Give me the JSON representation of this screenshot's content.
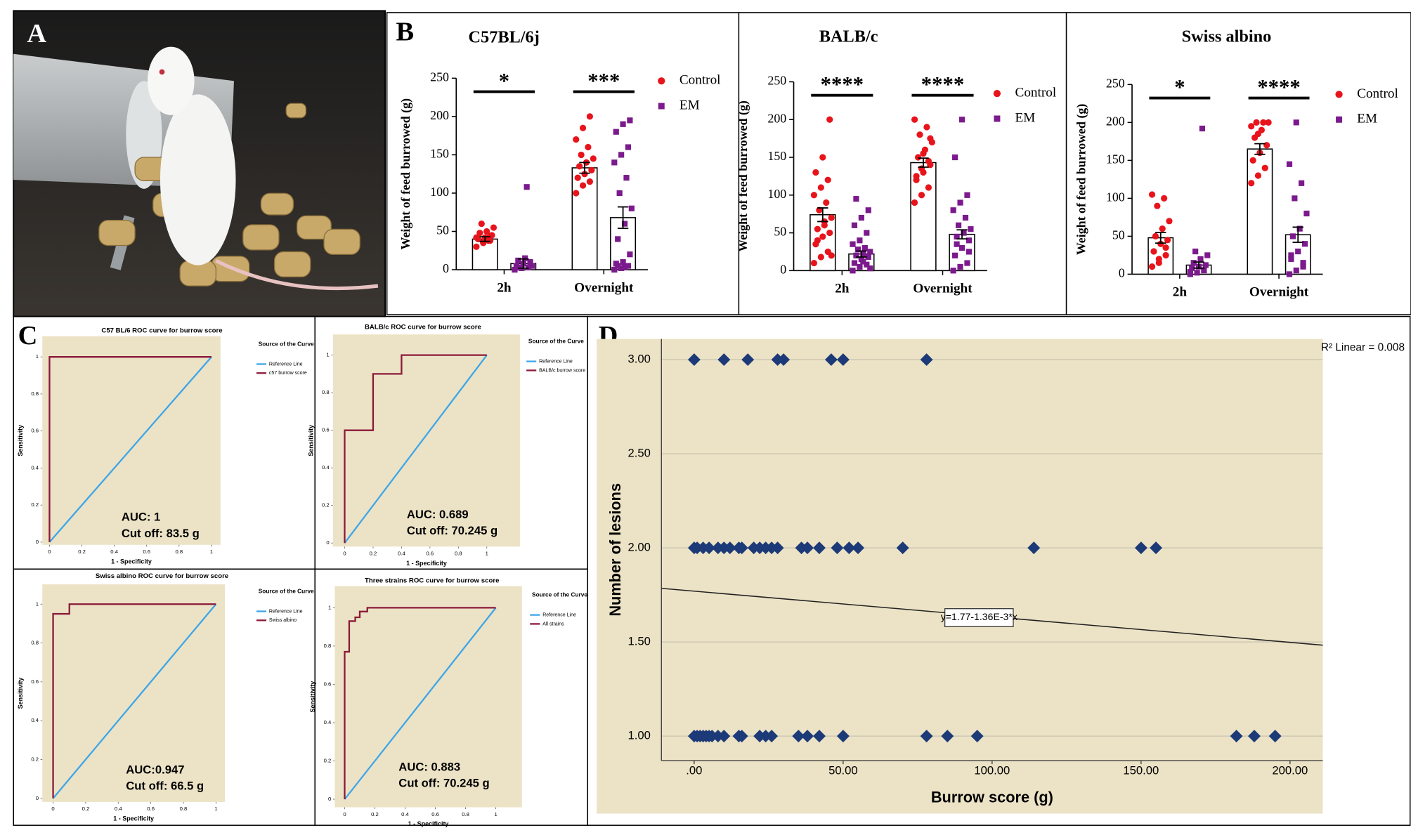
{
  "panel_labels": [
    "A",
    "B",
    "C",
    "D"
  ],
  "chart_data": [
    {
      "type": "bar",
      "title": "C57BL/6j",
      "y_label": "Weight of feed burrowed (g)",
      "categories": [
        "2h",
        "Overnight"
      ],
      "ylim": [
        0,
        250
      ],
      "yticks": [
        0,
        50,
        100,
        150,
        200,
        250
      ],
      "significance": [
        "*",
        "***"
      ],
      "legend": "right",
      "series": [
        {
          "name": "Control",
          "color": "#e8141c",
          "marker": "circle",
          "values": [
            40,
            133
          ],
          "errors": [
            3,
            7
          ],
          "points": [
            [
              30,
              35,
              38,
              40,
              42,
              45,
              48,
              50,
              55,
              60,
              38,
              42,
              36,
              44
            ],
            [
              100,
              110,
              115,
              120,
              125,
              130,
              135,
              140,
              145,
              150,
              160,
              170,
              185,
              200
            ]
          ]
        },
        {
          "name": "EM",
          "color": "#7b1a8c",
          "marker": "square",
          "values": [
            8,
            68
          ],
          "errors": [
            6,
            14
          ],
          "points": [
            [
              0,
              2,
              3,
              5,
              8,
              10,
              12,
              15,
              5,
              3,
              108
            ],
            [
              0,
              2,
              5,
              8,
              10,
              20,
              40,
              60,
              80,
              100,
              120,
              140,
              150,
              160,
              180,
              190,
              195,
              5,
              3
            ]
          ]
        }
      ]
    },
    {
      "type": "bar",
      "title": "BALB/c",
      "y_label": "Weight of feed burrowed (g)",
      "categories": [
        "2h",
        "Overnight"
      ],
      "ylim": [
        0,
        250
      ],
      "yticks": [
        0,
        50,
        100,
        150,
        200,
        250
      ],
      "significance": [
        "****",
        "****"
      ],
      "legend": "right",
      "series": [
        {
          "name": "Control",
          "color": "#e8141c",
          "marker": "circle",
          "values": [
            74,
            143
          ],
          "errors": [
            9,
            6
          ],
          "points": [
            [
              10,
              18,
              25,
              35,
              45,
              50,
              55,
              60,
              70,
              80,
              90,
              100,
              110,
              120,
              130,
              150,
              200,
              40,
              65,
              20
            ],
            [
              90,
              100,
              110,
              120,
              130,
              140,
              150,
              160,
              170,
              180,
              190,
              200,
              135,
              145,
              125,
              155,
              175
            ]
          ]
        },
        {
          "name": "EM",
          "color": "#7b1a8c",
          "marker": "square",
          "values": [
            22,
            48
          ],
          "errors": [
            4,
            6
          ],
          "points": [
            [
              0,
              5,
              8,
              10,
              15,
              18,
              20,
              22,
              25,
              28,
              30,
              35,
              40,
              50,
              60,
              70,
              80,
              95,
              12,
              3
            ],
            [
              0,
              5,
              10,
              20,
              30,
              40,
              45,
              50,
              55,
              60,
              70,
              80,
              90,
              100,
              150,
              200,
              25,
              35
            ]
          ]
        }
      ]
    },
    {
      "type": "bar",
      "title": "Swiss albino",
      "y_label": "Weight of feed burrowed (g)",
      "categories": [
        "2h",
        "Overnight"
      ],
      "ylim": [
        0,
        250
      ],
      "yticks": [
        0,
        50,
        100,
        150,
        200,
        250
      ],
      "significance": [
        "*",
        "****"
      ],
      "legend": "right",
      "series": [
        {
          "name": "Control",
          "color": "#e8141c",
          "marker": "circle",
          "values": [
            48,
            165
          ],
          "errors": [
            7,
            7
          ],
          "points": [
            [
              10,
              20,
              25,
              30,
              40,
              45,
              50,
              60,
              70,
              90,
              100,
              105,
              15,
              35
            ],
            [
              120,
              130,
              140,
              150,
              160,
              170,
              180,
              190,
              200,
              200,
              200,
              195,
              185
            ]
          ]
        },
        {
          "name": "EM",
          "color": "#7b1a8c",
          "marker": "square",
          "values": [
            12,
            52
          ],
          "errors": [
            4,
            10
          ],
          "points": [
            [
              0,
              2,
              5,
              8,
              10,
              12,
              15,
              20,
              25,
              30,
              192,
              3
            ],
            [
              0,
              5,
              10,
              20,
              30,
              40,
              50,
              60,
              80,
              100,
              120,
              145,
              200,
              15,
              25
            ]
          ]
        }
      ]
    },
    {
      "type": "line",
      "title": "C57 BL/6 ROC curve for burrow score",
      "x_label": "1 - Specificity",
      "y_label": "Sensitivity",
      "legend_title": "Source of the Curve",
      "auc_label": "AUC: 1",
      "cutoff_label": "Cut off: 83.5 g",
      "background": "#ece3c6",
      "xlim": [
        0,
        1
      ],
      "ylim": [
        0,
        1
      ],
      "xticks": [
        0,
        0.2,
        0.4,
        0.6,
        0.8,
        1
      ],
      "yticks": [
        0,
        0.2,
        0.4,
        0.6,
        0.8,
        1
      ],
      "series": [
        {
          "name": "Reference Line",
          "color": "#3ea6e8",
          "x": [
            0,
            1
          ],
          "values": [
            0,
            1
          ]
        },
        {
          "name": "c57 burrow score",
          "color": "#8b1a3a",
          "x": [
            0,
            0,
            1
          ],
          "values": [
            0,
            1,
            1
          ]
        }
      ]
    },
    {
      "type": "line",
      "title": "BALB/c ROC curve for burrow score",
      "x_label": "1 - Specificity",
      "y_label": "Sensitivity",
      "legend_title": "Source of the Curve",
      "auc_label": "AUC: 0.689",
      "cutoff_label": "Cut off: 70.245 g",
      "background": "#ece3c6",
      "xlim": [
        0,
        1
      ],
      "ylim": [
        0,
        1
      ],
      "xticks": [
        0,
        0.2,
        0.4,
        0.6,
        0.8,
        1
      ],
      "yticks": [
        0,
        0.2,
        0.4,
        0.6,
        0.8,
        1
      ],
      "series": [
        {
          "name": "Reference Line",
          "color": "#3ea6e8",
          "x": [
            0,
            1
          ],
          "values": [
            0,
            1
          ]
        },
        {
          "name": "BALB/c burrow score",
          "color": "#8b1a3a",
          "x": [
            0,
            0,
            0.2,
            0.2,
            0.4,
            0.4,
            1
          ],
          "values": [
            0,
            0.6,
            0.6,
            0.9,
            0.9,
            1,
            1
          ]
        }
      ]
    },
    {
      "type": "line",
      "title": "Swiss albino ROC curve for burrow score",
      "x_label": "1 - Specificity",
      "y_label": "Sensitivity",
      "legend_title": "Source of the Curve",
      "auc_label": "AUC:0.947",
      "cutoff_label": "Cut off: 66.5 g",
      "background": "#ece3c6",
      "xlim": [
        0,
        1
      ],
      "ylim": [
        0,
        1
      ],
      "xticks": [
        0,
        0.2,
        0.4,
        0.6,
        0.8,
        1
      ],
      "yticks": [
        0,
        0.2,
        0.4,
        0.6,
        0.8,
        1
      ],
      "series": [
        {
          "name": "Reference Line",
          "color": "#3ea6e8",
          "x": [
            0,
            1
          ],
          "values": [
            0,
            1
          ]
        },
        {
          "name": "Swiss albino",
          "color": "#8b1a3a",
          "x": [
            0,
            0,
            0.1,
            0.1,
            1
          ],
          "values": [
            0,
            0.95,
            0.95,
            1,
            1
          ]
        }
      ]
    },
    {
      "type": "line",
      "title": "Three strains ROC curve for burrow score",
      "x_label": "1 - Specificity",
      "y_label": "Sensitivity",
      "legend_title": "Source of the Curve",
      "auc_label": "AUC: 0.883",
      "cutoff_label": "Cut off: 70.245 g",
      "background": "#ece3c6",
      "xlim": [
        0,
        1
      ],
      "ylim": [
        0,
        1
      ],
      "xticks": [
        0,
        0.2,
        0.4,
        0.6,
        0.8,
        1
      ],
      "yticks": [
        0,
        0.2,
        0.4,
        0.6,
        0.8,
        1
      ],
      "series": [
        {
          "name": "Reference Line",
          "color": "#3ea6e8",
          "x": [
            0,
            1
          ],
          "values": [
            0,
            1
          ]
        },
        {
          "name": "All strains",
          "color": "#8b1a3a",
          "x": [
            0,
            0,
            0.03,
            0.03,
            0.07,
            0.07,
            0.1,
            0.1,
            0.15,
            0.15,
            1
          ],
          "values": [
            0,
            0.77,
            0.77,
            0.93,
            0.93,
            0.95,
            0.95,
            0.98,
            0.98,
            1,
            1
          ]
        }
      ]
    },
    {
      "type": "scatter",
      "x_label": "Burrow score (g)",
      "y_label": "Number of lesions",
      "background": "#ece3c6",
      "grid": true,
      "r2_label": "R² Linear = 0.008",
      "fit": {
        "intercept": 1.77,
        "slope": -0.00136,
        "label": "y=1.77-1.36E-3*x"
      },
      "xlim": [
        -11,
        211
      ],
      "ylim": [
        0.87,
        3.11
      ],
      "xticks": [
        {
          "value": 0,
          "label": ".00"
        },
        {
          "value": 50,
          "label": "50.00"
        },
        {
          "value": 100,
          "label": "100.00"
        },
        {
          "value": 150,
          "label": "150.00"
        },
        {
          "value": 200,
          "label": "200.00"
        }
      ],
      "yticks": [
        {
          "value": 1,
          "label": "1.00"
        },
        {
          "value": 1.5,
          "label": "1.50"
        },
        {
          "value": 2,
          "label": "2.00"
        },
        {
          "value": 2.5,
          "label": "2.50"
        },
        {
          "value": 3,
          "label": "3.00"
        }
      ],
      "series": [
        {
          "color": "#1c3a78",
          "x": [
            0,
            10,
            18,
            28,
            30,
            46,
            50,
            78,
            0,
            1,
            3,
            5,
            8,
            10,
            12,
            15,
            16,
            20,
            22,
            24,
            26,
            28,
            36,
            38,
            42,
            48,
            52,
            55,
            70,
            114,
            150,
            155,
            0,
            1,
            2,
            3,
            4,
            5,
            6,
            8,
            10,
            15,
            16,
            22,
            24,
            26,
            35,
            38,
            42,
            50,
            78,
            85,
            95,
            182,
            188,
            195
          ],
          "values": [
            3,
            3,
            3,
            3,
            3,
            3,
            3,
            3,
            2,
            2,
            2,
            2,
            2,
            2,
            2,
            2,
            2,
            2,
            2,
            2,
            2,
            2,
            2,
            2,
            2,
            2,
            2,
            2,
            2,
            2,
            2,
            2,
            1,
            1,
            1,
            1,
            1,
            1,
            1,
            1,
            1,
            1,
            1,
            1,
            1,
            1,
            1,
            1,
            1,
            1,
            1,
            1,
            1,
            1,
            1,
            1
          ]
        }
      ]
    }
  ]
}
